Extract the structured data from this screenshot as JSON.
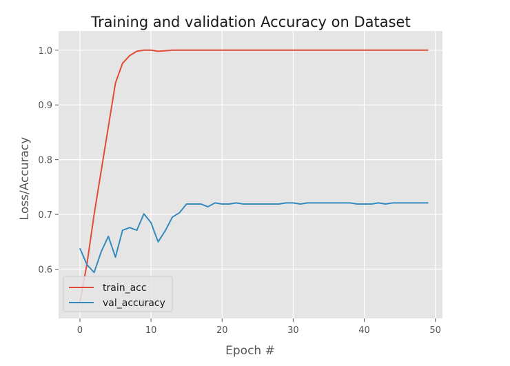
{
  "chart_data": {
    "type": "line",
    "title": "Training and validation Accuracy on Dataset",
    "xlabel": "Epoch #",
    "ylabel": "Loss/Accuracy",
    "xlim": [
      -3,
      51
    ],
    "ylim": [
      0.51,
      1.035
    ],
    "xticks": [
      0,
      10,
      20,
      30,
      40,
      50
    ],
    "yticks": [
      0.6,
      0.7,
      0.8,
      0.9,
      1.0
    ],
    "xtick_labels": [
      "0",
      "10",
      "20",
      "30",
      "40",
      "50"
    ],
    "ytick_labels": [
      "0.6",
      "0.7",
      "0.8",
      "0.9",
      "1.0"
    ],
    "grid": true,
    "legend_position": "lower-left",
    "x": [
      0,
      1,
      2,
      3,
      4,
      5,
      6,
      7,
      8,
      9,
      10,
      11,
      12,
      13,
      14,
      15,
      16,
      17,
      18,
      19,
      20,
      21,
      22,
      23,
      24,
      25,
      26,
      27,
      28,
      29,
      30,
      31,
      32,
      33,
      34,
      35,
      36,
      37,
      38,
      39,
      40,
      41,
      42,
      43,
      44,
      45,
      46,
      47,
      48,
      49
    ],
    "series": [
      {
        "name": "train_acc",
        "color": "#E24A33",
        "values": [
          0.54,
          0.61,
          0.7,
          0.78,
          0.86,
          0.94,
          0.976,
          0.99,
          0.998,
          1.0,
          1.0,
          0.998,
          0.999,
          1.0,
          1.0,
          1.0,
          1.0,
          1.0,
          1.0,
          1.0,
          1.0,
          1.0,
          1.0,
          1.0,
          1.0,
          1.0,
          1.0,
          1.0,
          1.0,
          1.0,
          1.0,
          1.0,
          1.0,
          1.0,
          1.0,
          1.0,
          1.0,
          1.0,
          1.0,
          1.0,
          1.0,
          1.0,
          1.0,
          1.0,
          1.0,
          1.0,
          1.0,
          1.0,
          1.0,
          1.0
        ]
      },
      {
        "name": "val_accuracy",
        "color": "#348ABD",
        "values": [
          0.638,
          0.608,
          0.594,
          0.632,
          0.66,
          0.622,
          0.671,
          0.676,
          0.671,
          0.701,
          0.685,
          0.65,
          0.67,
          0.695,
          0.703,
          0.719,
          0.719,
          0.719,
          0.714,
          0.721,
          0.719,
          0.719,
          0.721,
          0.719,
          0.719,
          0.719,
          0.719,
          0.719,
          0.719,
          0.721,
          0.721,
          0.719,
          0.721,
          0.721,
          0.721,
          0.721,
          0.721,
          0.721,
          0.721,
          0.719,
          0.719,
          0.719,
          0.721,
          0.719,
          0.721,
          0.721,
          0.721,
          0.721,
          0.721,
          0.721
        ]
      }
    ]
  }
}
